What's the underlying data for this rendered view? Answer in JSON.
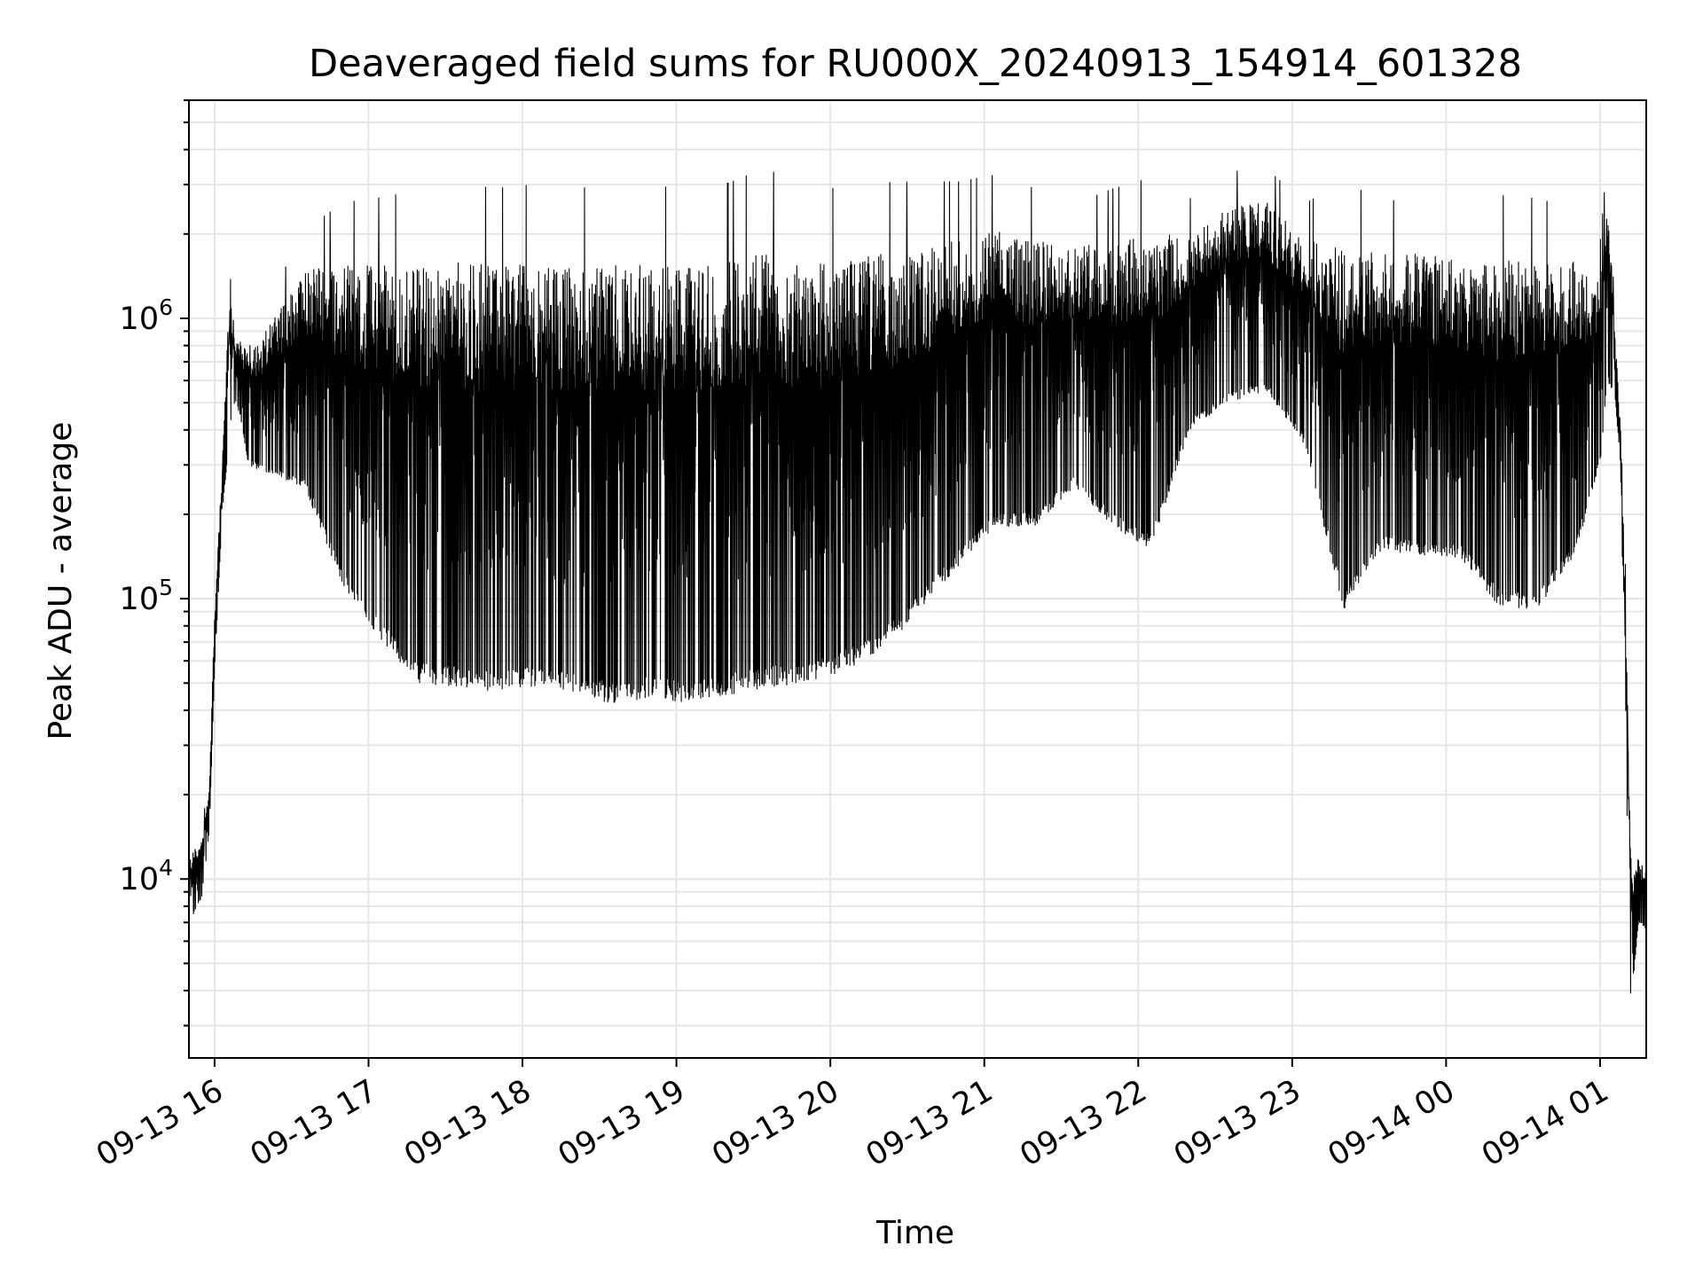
{
  "chart_data": {
    "type": "line",
    "title": "Deaveraged field sums for RU000X_20240913_154914_601328",
    "xlabel": "Time",
    "ylabel": "Peak ADU - average",
    "yscale": "log",
    "ylim": [
      2300,
      6000000
    ],
    "xlim": [
      "2024-09-13 15:50",
      "2024-09-14 01:18"
    ],
    "grid": true,
    "line_color": "#000000",
    "grid_color": "#e6e6e6",
    "x_ticks": [
      "09-13 16",
      "09-13 17",
      "09-13 18",
      "09-13 19",
      "09-13 20",
      "09-13 21",
      "09-13 22",
      "09-13 23",
      "09-14 00",
      "09-14 01"
    ],
    "x_tick_times": [
      "2024-09-13 16:00",
      "2024-09-13 17:00",
      "2024-09-13 18:00",
      "2024-09-13 19:00",
      "2024-09-13 20:00",
      "2024-09-13 21:00",
      "2024-09-13 22:00",
      "2024-09-13 23:00",
      "2024-09-14 00:00",
      "2024-09-14 01:00"
    ],
    "y_ticks": [
      {
        "value": 10000,
        "base": "10",
        "exp": "4"
      },
      {
        "value": 100000,
        "base": "10",
        "exp": "5"
      },
      {
        "value": 1000000,
        "base": "10",
        "exp": "6"
      }
    ],
    "series": [
      {
        "x": [
          "2024-09-13 15:50",
          "2024-09-13 15:52",
          "2024-09-13 15:55",
          "2024-09-13 15:58",
          "2024-09-13 16:00",
          "2024-09-13 16:03",
          "2024-09-13 16:06",
          "2024-09-13 16:08",
          "2024-09-13 16:10",
          "2024-09-13 16:13",
          "2024-09-13 16:20",
          "2024-09-13 16:35",
          "2024-09-13 16:50",
          "2024-09-13 17:05",
          "2024-09-13 17:20",
          "2024-09-13 17:35",
          "2024-09-13 17:50",
          "2024-09-13 18:05",
          "2024-09-13 18:20",
          "2024-09-13 18:35",
          "2024-09-13 18:50",
          "2024-09-13 19:05",
          "2024-09-13 19:20",
          "2024-09-13 19:35",
          "2024-09-13 19:50",
          "2024-09-13 20:05",
          "2024-09-13 20:20",
          "2024-09-13 20:35",
          "2024-09-13 20:50",
          "2024-09-13 21:05",
          "2024-09-13 21:20",
          "2024-09-13 21:35",
          "2024-09-13 21:50",
          "2024-09-13 22:05",
          "2024-09-13 22:20",
          "2024-09-13 22:35",
          "2024-09-13 22:50",
          "2024-09-13 23:05",
          "2024-09-13 23:20",
          "2024-09-13 23:35",
          "2024-09-13 23:50",
          "2024-09-14 00:05",
          "2024-09-14 00:20",
          "2024-09-14 00:35",
          "2024-09-14 00:50",
          "2024-09-14 01:00",
          "2024-09-14 01:03",
          "2024-09-14 01:06",
          "2024-09-14 01:08",
          "2024-09-14 01:10",
          "2024-09-14 01:12",
          "2024-09-14 01:15",
          "2024-09-14 01:18"
        ],
        "high": [
          12000,
          13000,
          14000,
          22000,
          90000,
          300000,
          1500000,
          800000,
          850000,
          800000,
          900000,
          1500000,
          1600000,
          1550000,
          1550000,
          1600000,
          1550000,
          1600000,
          1550000,
          1550000,
          1550000,
          1550000,
          1600000,
          1800000,
          1550000,
          1600000,
          1700000,
          1800000,
          1900000,
          2100000,
          1900000,
          1800000,
          1900000,
          2000000,
          2000000,
          2500000,
          2600000,
          1900000,
          1800000,
          1700000,
          1700000,
          1650000,
          1650000,
          1600000,
          1600000,
          1400000,
          3000000,
          850000,
          400000,
          100000,
          12000,
          12000,
          11000
        ],
        "low": [
          7000,
          7500,
          8500,
          15000,
          55000,
          200000,
          400000,
          500000,
          450000,
          300000,
          280000,
          250000,
          110000,
          70000,
          50000,
          48000,
          46000,
          48000,
          46000,
          42000,
          44000,
          42000,
          45000,
          48000,
          50000,
          55000,
          65000,
          90000,
          130000,
          180000,
          180000,
          250000,
          180000,
          150000,
          400000,
          500000,
          550000,
          350000,
          90000,
          150000,
          140000,
          140000,
          95000,
          90000,
          140000,
          300000,
          600000,
          500000,
          300000,
          30000,
          3500,
          7000,
          6500
        ]
      }
    ]
  }
}
